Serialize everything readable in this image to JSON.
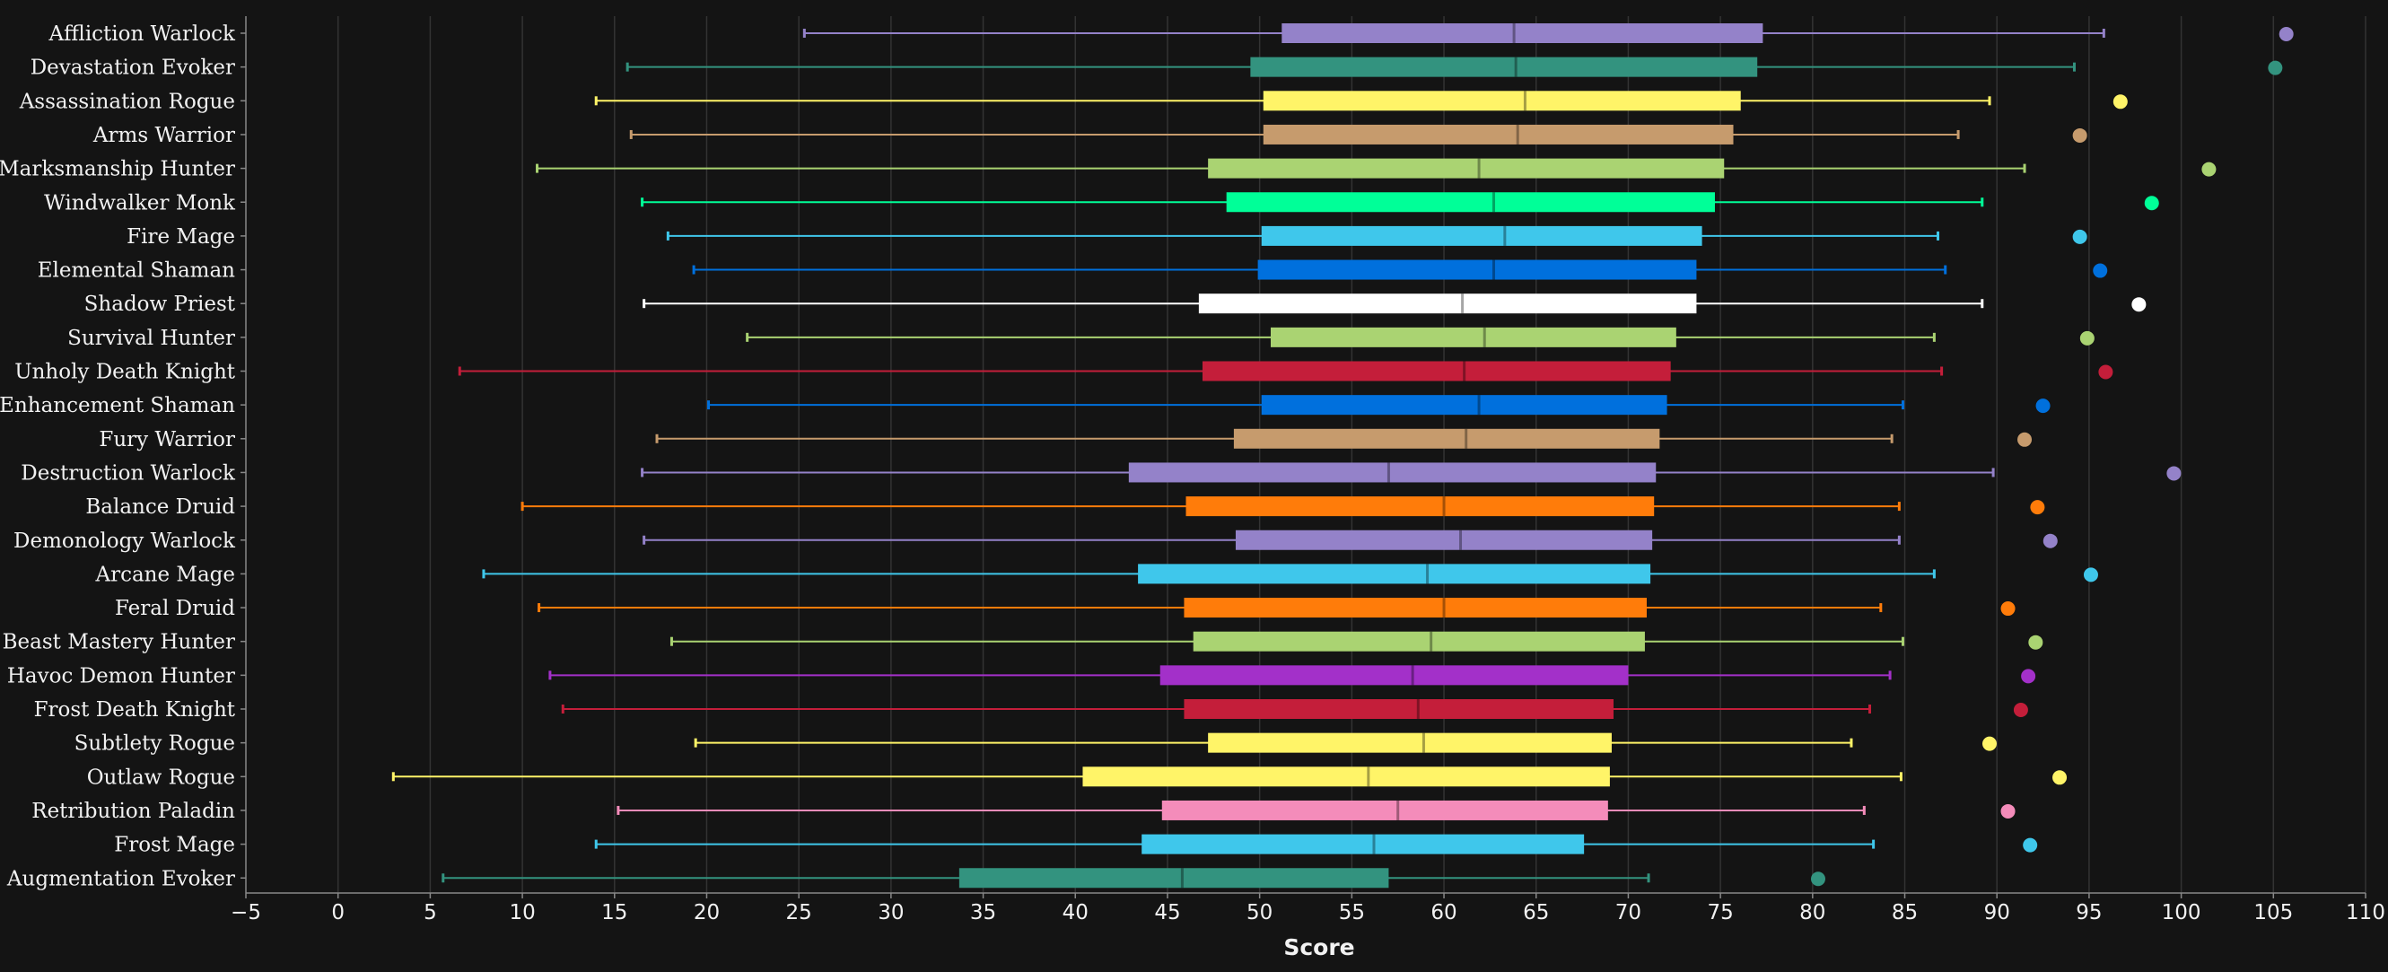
{
  "chart_data": {
    "type": "boxplot",
    "xlabel": "Score",
    "xlim": [
      -5,
      110
    ],
    "ticks": [
      -5,
      0,
      5,
      10,
      15,
      20,
      25,
      30,
      35,
      40,
      45,
      50,
      55,
      60,
      65,
      70,
      75,
      80,
      85,
      90,
      95,
      100,
      105,
      110
    ],
    "grid": true,
    "background": "#141414",
    "series": [
      {
        "name": "Affliction Warlock",
        "color": "#9482C9",
        "min": 25.3,
        "q1": 51.2,
        "median": 63.8,
        "q3": 77.3,
        "max": 95.8,
        "outlier": 105.7
      },
      {
        "name": "Devastation Evoker",
        "color": "#33937F",
        "min": 15.7,
        "q1": 49.5,
        "median": 63.9,
        "q3": 77.0,
        "max": 94.2,
        "outlier": 105.1
      },
      {
        "name": "Assassination Rogue",
        "color": "#FFF468",
        "min": 14.0,
        "q1": 50.2,
        "median": 64.4,
        "q3": 76.1,
        "max": 89.6,
        "outlier": 96.7
      },
      {
        "name": "Arms Warrior",
        "color": "#C69B6D",
        "min": 15.9,
        "q1": 50.2,
        "median": 64.0,
        "q3": 75.7,
        "max": 87.9,
        "outlier": 94.5
      },
      {
        "name": "Marksmanship Hunter",
        "color": "#AAD372",
        "min": 10.8,
        "q1": 47.2,
        "median": 61.9,
        "q3": 75.2,
        "max": 91.5,
        "outlier": 101.5
      },
      {
        "name": "Windwalker Monk",
        "color": "#00FF98",
        "min": 16.5,
        "q1": 48.2,
        "median": 62.7,
        "q3": 74.7,
        "max": 89.2,
        "outlier": 98.4
      },
      {
        "name": "Fire Mage",
        "color": "#3FC7EB",
        "min": 17.9,
        "q1": 50.1,
        "median": 63.3,
        "q3": 74.0,
        "max": 86.8,
        "outlier": 94.5
      },
      {
        "name": "Elemental Shaman",
        "color": "#0070DD",
        "min": 19.3,
        "q1": 49.9,
        "median": 62.7,
        "q3": 73.7,
        "max": 87.2,
        "outlier": 95.6
      },
      {
        "name": "Shadow Priest",
        "color": "#FFFFFF",
        "min": 16.6,
        "q1": 46.7,
        "median": 61.0,
        "q3": 73.7,
        "max": 89.2,
        "outlier": 97.7
      },
      {
        "name": "Survival Hunter",
        "color": "#AAD372",
        "min": 22.2,
        "q1": 50.6,
        "median": 62.2,
        "q3": 72.6,
        "max": 86.6,
        "outlier": 94.9
      },
      {
        "name": "Unholy Death Knight",
        "color": "#C41E3A",
        "min": 6.6,
        "q1": 46.9,
        "median": 61.1,
        "q3": 72.3,
        "max": 87.0,
        "outlier": 95.9
      },
      {
        "name": "Enhancement Shaman",
        "color": "#0070DD",
        "min": 20.1,
        "q1": 50.1,
        "median": 61.9,
        "q3": 72.1,
        "max": 84.9,
        "outlier": 92.5
      },
      {
        "name": "Fury Warrior",
        "color": "#C69B6D",
        "min": 17.3,
        "q1": 48.6,
        "median": 61.2,
        "q3": 71.7,
        "max": 84.3,
        "outlier": 91.5
      },
      {
        "name": "Destruction Warlock",
        "color": "#9482C9",
        "min": 16.5,
        "q1": 42.9,
        "median": 57.0,
        "q3": 71.5,
        "max": 89.8,
        "outlier": 99.6
      },
      {
        "name": "Balance Druid",
        "color": "#FF7C0A",
        "min": 10.0,
        "q1": 46.0,
        "median": 60.0,
        "q3": 71.4,
        "max": 84.7,
        "outlier": 92.2
      },
      {
        "name": "Demonology Warlock",
        "color": "#9482C9",
        "min": 16.6,
        "q1": 48.7,
        "median": 60.9,
        "q3": 71.3,
        "max": 84.7,
        "outlier": 92.9
      },
      {
        "name": "Arcane Mage",
        "color": "#3FC7EB",
        "min": 7.9,
        "q1": 43.4,
        "median": 59.1,
        "q3": 71.2,
        "max": 86.6,
        "outlier": 95.1
      },
      {
        "name": "Feral Druid",
        "color": "#FF7C0A",
        "min": 10.9,
        "q1": 45.9,
        "median": 60.0,
        "q3": 71.0,
        "max": 83.7,
        "outlier": 90.6
      },
      {
        "name": "Beast Mastery Hunter",
        "color": "#AAD372",
        "min": 18.1,
        "q1": 46.4,
        "median": 59.3,
        "q3": 70.9,
        "max": 84.9,
        "outlier": 92.1
      },
      {
        "name": "Havoc Demon Hunter",
        "color": "#A330C9",
        "min": 11.5,
        "q1": 44.6,
        "median": 58.3,
        "q3": 70.0,
        "max": 84.2,
        "outlier": 91.7
      },
      {
        "name": "Frost Death Knight",
        "color": "#C41E3A",
        "min": 12.2,
        "q1": 45.9,
        "median": 58.6,
        "q3": 69.2,
        "max": 83.1,
        "outlier": 91.3
      },
      {
        "name": "Subtlety Rogue",
        "color": "#FFF468",
        "min": 19.4,
        "q1": 47.2,
        "median": 58.9,
        "q3": 69.1,
        "max": 82.1,
        "outlier": 89.6
      },
      {
        "name": "Outlaw Rogue",
        "color": "#FFF468",
        "min": 3.0,
        "q1": 40.4,
        "median": 55.9,
        "q3": 69.0,
        "max": 84.8,
        "outlier": 93.4
      },
      {
        "name": "Retribution Paladin",
        "color": "#F48CBA",
        "min": 15.2,
        "q1": 44.7,
        "median": 57.5,
        "q3": 68.9,
        "max": 82.8,
        "outlier": 90.6
      },
      {
        "name": "Frost Mage",
        "color": "#3FC7EB",
        "min": 14.0,
        "q1": 43.6,
        "median": 56.2,
        "q3": 67.6,
        "max": 83.3,
        "outlier": 91.8
      },
      {
        "name": "Augmentation Evoker",
        "color": "#33937F",
        "min": 5.7,
        "q1": 33.7,
        "median": 45.8,
        "q3": 57.0,
        "max": 71.1,
        "outlier": 80.3
      }
    ]
  }
}
